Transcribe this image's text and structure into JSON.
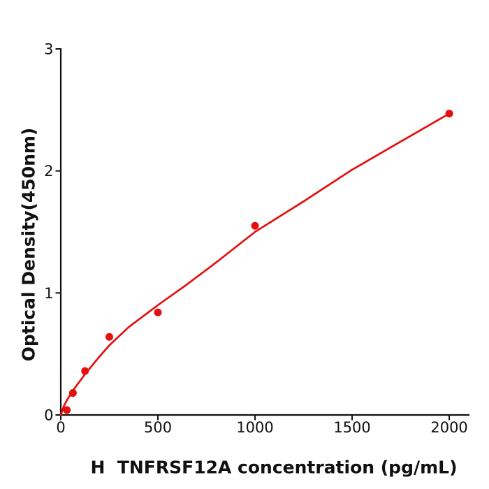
{
  "chart_data": {
    "type": "scatter",
    "title": "",
    "xlabel": "H  TNFRSF12A concentration (pg/mL)",
    "ylabel": "Optical Density(450nm)",
    "series": [
      {
        "name": "standard-points",
        "x": [
          31.25,
          62.5,
          125,
          250,
          500,
          1000,
          2000
        ],
        "y": [
          0.04,
          0.18,
          0.36,
          0.64,
          0.84,
          1.55,
          2.47
        ]
      }
    ],
    "fit_curve_samples": [
      [
        0,
        0
      ],
      [
        15,
        0.07
      ],
      [
        31.25,
        0.12
      ],
      [
        62.5,
        0.2
      ],
      [
        125,
        0.335
      ],
      [
        200,
        0.48
      ],
      [
        250,
        0.57
      ],
      [
        350,
        0.72
      ],
      [
        500,
        0.9
      ],
      [
        650,
        1.07
      ],
      [
        800,
        1.25
      ],
      [
        1000,
        1.5
      ],
      [
        1250,
        1.75
      ],
      [
        1500,
        2.01
      ],
      [
        1750,
        2.24
      ],
      [
        2000,
        2.47
      ]
    ],
    "x_ticks": [
      0,
      500,
      1000,
      1500,
      2000
    ],
    "y_ticks": [
      0,
      1,
      2,
      3
    ],
    "xlim": [
      0,
      2104
    ],
    "ylim": [
      0,
      3
    ],
    "grid": false,
    "legend": false,
    "marker_color": "#e60f0f",
    "line_color": "#e60f0f",
    "axis_color": "#111111",
    "background_color": "#ffffff"
  }
}
